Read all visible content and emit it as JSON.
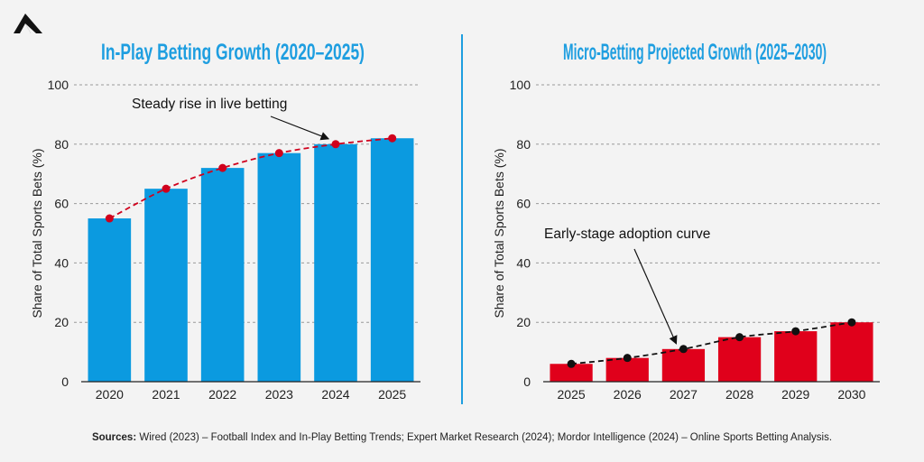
{
  "brand": {
    "logo_icon": "triangle-logo-icon"
  },
  "colors": {
    "title": "#1e9ee0",
    "bar_left": "#0b9ae0",
    "bar_right": "#e0001b",
    "trend_left": "#d0001c",
    "trend_right": "#111111",
    "divider": "#1e9ee0",
    "grid": "#9a9a9a"
  },
  "chart_data": [
    {
      "type": "bar",
      "title": "In-Play Betting Growth (2020–2025)",
      "xlabel": "",
      "ylabel": "Share of Total Sports Bets (%)",
      "ylim": [
        0,
        100
      ],
      "yticks": [
        0,
        20,
        40,
        60,
        80,
        100
      ],
      "categories": [
        "2020",
        "2021",
        "2022",
        "2023",
        "2024",
        "2025"
      ],
      "values": [
        55,
        65,
        72,
        77,
        80,
        82
      ],
      "trend": {
        "style": "dashed-red",
        "values": [
          55,
          65,
          72,
          77,
          80,
          82
        ]
      },
      "annotation": {
        "text": "Steady rise in live betting",
        "target_index": 4
      }
    },
    {
      "type": "bar",
      "title": "Micro-Betting Projected Growth (2025–2030)",
      "xlabel": "",
      "ylabel": "Share of Total Sports Bets (%)",
      "ylim": [
        0,
        100
      ],
      "yticks": [
        0,
        20,
        40,
        60,
        80,
        100
      ],
      "categories": [
        "2025",
        "2026",
        "2027",
        "2028",
        "2029",
        "2030"
      ],
      "values": [
        6,
        8,
        11,
        15,
        17,
        20
      ],
      "trend": {
        "style": "dashed-black",
        "values": [
          6,
          8,
          11,
          15,
          17,
          20
        ]
      },
      "annotation": {
        "text": "Early-stage adoption curve",
        "target_index": 2
      }
    }
  ],
  "sources": {
    "label": "Sources:",
    "text": "Wired (2023) – Football Index and In-Play Betting Trends; Expert Market Research (2024); Mordor Intelligence (2024) – Online Sports Betting Analysis."
  }
}
